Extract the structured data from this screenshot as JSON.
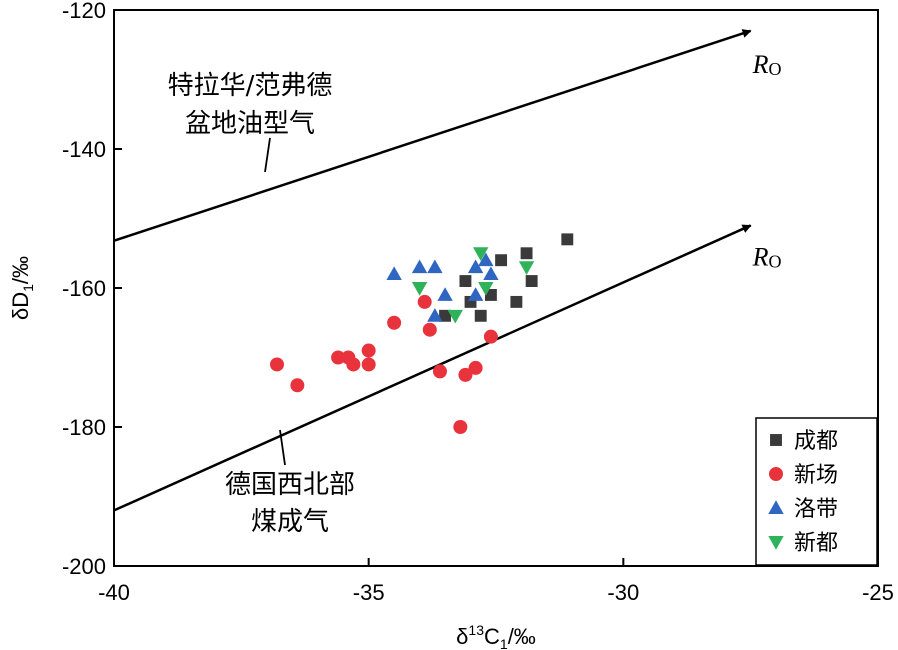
{
  "chart_data": {
    "type": "scatter",
    "x_label": {
      "prefix": "δ",
      "sup": "13",
      "main": "C",
      "sub": "1",
      "suffix": "/‰"
    },
    "y_label": {
      "main": "δD",
      "sub": "1",
      "suffix": "/‰"
    },
    "xlim": [
      -40,
      -25
    ],
    "ylim": [
      -200,
      -120
    ],
    "x_ticks": [
      -40,
      -35,
      -30,
      -25
    ],
    "y_ticks": [
      -200,
      -180,
      -160,
      -140,
      -120
    ],
    "grid": false,
    "legend_position": "bottom-right",
    "series": [
      {
        "name": "成都",
        "marker": "square",
        "color": "#3a3a3a",
        "points": [
          [
            -31.1,
            -153
          ],
          [
            -31.9,
            -155
          ],
          [
            -32.4,
            -156
          ],
          [
            -31.8,
            -159
          ],
          [
            -33.1,
            -159
          ],
          [
            -32.6,
            -161
          ],
          [
            -33.0,
            -162
          ],
          [
            -32.1,
            -162
          ],
          [
            -33.5,
            -164
          ],
          [
            -32.8,
            -164
          ]
        ]
      },
      {
        "name": "新场",
        "marker": "circle",
        "color": "#e8323c",
        "points": [
          [
            -33.9,
            -162
          ],
          [
            -34.5,
            -165
          ],
          [
            -33.8,
            -166
          ],
          [
            -32.6,
            -167
          ],
          [
            -35.0,
            -169
          ],
          [
            -35.6,
            -170
          ],
          [
            -35.4,
            -170
          ],
          [
            -35.3,
            -171
          ],
          [
            -35.0,
            -171
          ],
          [
            -36.8,
            -171
          ],
          [
            -32.9,
            -171.5
          ],
          [
            -33.1,
            -172.5
          ],
          [
            -33.6,
            -172
          ],
          [
            -36.4,
            -174
          ],
          [
            -33.2,
            -180
          ]
        ]
      },
      {
        "name": "洛带",
        "marker": "triangle-up",
        "color": "#2f66c1",
        "points": [
          [
            -34.5,
            -158
          ],
          [
            -34.0,
            -157
          ],
          [
            -33.7,
            -157
          ],
          [
            -32.9,
            -157
          ],
          [
            -32.7,
            -156
          ],
          [
            -32.6,
            -158
          ],
          [
            -33.5,
            -161
          ],
          [
            -32.9,
            -161
          ],
          [
            -33.7,
            -164
          ]
        ]
      },
      {
        "name": "新都",
        "marker": "triangle-down",
        "color": "#2fb35a",
        "points": [
          [
            -32.8,
            -155
          ],
          [
            -34.0,
            -160
          ],
          [
            -32.7,
            -160
          ],
          [
            -31.9,
            -157
          ],
          [
            -33.3,
            -164
          ]
        ]
      }
    ],
    "trend_lines": [
      {
        "label_lines": [
          "特拉华/范弗德",
          "盆地油型气"
        ],
        "arrow_label": "R",
        "arrow_label_sub": "O",
        "from": [
          -40,
          -153.2
        ],
        "to": [
          -27.5,
          -123
        ]
      },
      {
        "label_lines": [
          "德国西北部",
          "煤成气"
        ],
        "arrow_label": "R",
        "arrow_label_sub": "O",
        "from": [
          -40,
          -192
        ],
        "to": [
          -27.5,
          -151
        ]
      }
    ]
  }
}
